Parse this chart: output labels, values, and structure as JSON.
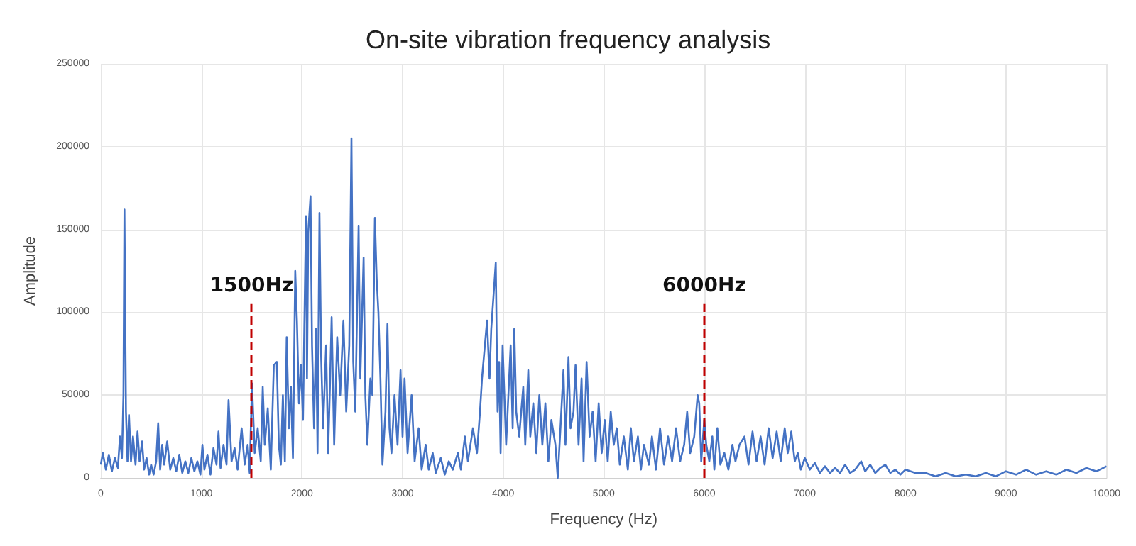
{
  "chart_data": {
    "type": "line",
    "title": "On-site vibration frequency analysis",
    "xlabel": "Frequency (Hz)",
    "ylabel": "Amplitude",
    "xlim": [
      0,
      10000
    ],
    "xticks": [
      0,
      1000,
      2000,
      3000,
      4000,
      5000,
      6000,
      7000,
      8000,
      9000,
      10000
    ],
    "ylim": [
      0,
      250000
    ],
    "yticks": [
      0,
      50000,
      100000,
      150000,
      200000,
      250000
    ],
    "grid": true,
    "marker": "none",
    "line_style": "solid",
    "ref_lines": [
      {
        "axis": "x",
        "value": 1500,
        "label": "1500Hz",
        "color": "#c00000",
        "line_style": "dashed"
      },
      {
        "axis": "x",
        "value": 6000,
        "label": "6000Hz",
        "color": "#c00000",
        "line_style": "dashed"
      }
    ],
    "series": [
      {
        "color": "#4472c4",
        "x": [
          0,
          20,
          50,
          80,
          110,
          140,
          170,
          190,
          210,
          225,
          235,
          250,
          265,
          280,
          300,
          320,
          345,
          365,
          385,
          410,
          430,
          455,
          480,
          500,
          525,
          550,
          570,
          590,
          610,
          630,
          660,
          690,
          720,
          750,
          780,
          810,
          840,
          870,
          900,
          930,
          960,
          990,
          1010,
          1030,
          1060,
          1090,
          1120,
          1150,
          1170,
          1190,
          1220,
          1250,
          1270,
          1300,
          1330,
          1360,
          1400,
          1430,
          1460,
          1480,
          1503,
          1530,
          1560,
          1590,
          1610,
          1630,
          1660,
          1690,
          1720,
          1750,
          1770,
          1790,
          1810,
          1830,
          1848,
          1870,
          1890,
          1910,
          1933,
          1950,
          1970,
          1990,
          2010,
          2040,
          2050,
          2062,
          2085,
          2100,
          2120,
          2140,
          2155,
          2174,
          2190,
          2210,
          2240,
          2260,
          2280,
          2295,
          2320,
          2350,
          2380,
          2412,
          2440,
          2470,
          2492,
          2510,
          2530,
          2563,
          2580,
          2613,
          2630,
          2650,
          2680,
          2700,
          2725,
          2743,
          2760,
          2780,
          2800,
          2830,
          2850,
          2870,
          2890,
          2920,
          2950,
          2980,
          3000,
          3020,
          3050,
          3090,
          3120,
          3160,
          3190,
          3230,
          3260,
          3300,
          3330,
          3380,
          3420,
          3460,
          3500,
          3550,
          3580,
          3620,
          3650,
          3700,
          3740,
          3770,
          3790,
          3840,
          3865,
          3882,
          3927,
          3945,
          3960,
          3975,
          3995,
          4030,
          4075,
          4095,
          4111,
          4130,
          4160,
          4200,
          4220,
          4250,
          4270,
          4300,
          4330,
          4360,
          4390,
          4420,
          4450,
          4480,
          4520,
          4543,
          4570,
          4600,
          4620,
          4650,
          4670,
          4700,
          4720,
          4750,
          4780,
          4800,
          4830,
          4860,
          4890,
          4920,
          4950,
          4980,
          5010,
          5040,
          5070,
          5100,
          5130,
          5160,
          5200,
          5240,
          5270,
          5300,
          5340,
          5370,
          5400,
          5450,
          5480,
          5520,
          5560,
          5600,
          5640,
          5680,
          5720,
          5760,
          5800,
          5830,
          5860,
          5900,
          5934,
          5950,
          5970,
          6000,
          6020,
          6050,
          6080,
          6100,
          6130,
          6160,
          6200,
          6240,
          6280,
          6310,
          6350,
          6400,
          6440,
          6480,
          6520,
          6560,
          6600,
          6640,
          6680,
          6720,
          6760,
          6800,
          6830,
          6865,
          6900,
          6930,
          6960,
          7000,
          7050,
          7100,
          7150,
          7200,
          7250,
          7300,
          7350,
          7400,
          7450,
          7500,
          7560,
          7600,
          7650,
          7700,
          7750,
          7800,
          7850,
          7900,
          7950,
          8000,
          8100,
          8200,
          8300,
          8400,
          8500,
          8600,
          8700,
          8800,
          8900,
          9000,
          9100,
          9200,
          9300,
          9400,
          9500,
          9600,
          9700,
          9800,
          9900,
          10000
        ],
        "values": [
          8000,
          15000,
          5000,
          14000,
          4000,
          12000,
          6000,
          25000,
          12000,
          50000,
          162000,
          40000,
          10000,
          38000,
          10000,
          25000,
          8000,
          28000,
          10000,
          22000,
          5000,
          12000,
          2000,
          8000,
          2000,
          10000,
          33000,
          5000,
          20000,
          8000,
          22000,
          5000,
          12000,
          4000,
          14000,
          3000,
          10000,
          3000,
          12000,
          4000,
          10000,
          2000,
          20000,
          5000,
          14000,
          2000,
          18000,
          8000,
          28000,
          6000,
          20000,
          8000,
          47000,
          10000,
          18000,
          5000,
          30000,
          8000,
          20000,
          3000,
          57000,
          15000,
          30000,
          10000,
          55000,
          20000,
          42000,
          5000,
          68000,
          70000,
          20000,
          8000,
          50000,
          10000,
          85000,
          30000,
          55000,
          12000,
          125000,
          95000,
          45000,
          68000,
          35000,
          158000,
          60000,
          148000,
          170000,
          80000,
          30000,
          90000,
          15000,
          160000,
          75000,
          30000,
          80000,
          15000,
          60000,
          97000,
          20000,
          85000,
          50000,
          95000,
          40000,
          80000,
          205000,
          70000,
          40000,
          152000,
          60000,
          133000,
          50000,
          20000,
          60000,
          50000,
          157000,
          120000,
          100000,
          60000,
          8000,
          40000,
          93000,
          30000,
          15000,
          50000,
          20000,
          65000,
          25000,
          60000,
          15000,
          50000,
          10000,
          30000,
          5000,
          20000,
          5000,
          15000,
          3000,
          12000,
          2000,
          10000,
          5000,
          15000,
          5000,
          25000,
          10000,
          30000,
          15000,
          40000,
          60000,
          95000,
          60000,
          90000,
          130000,
          40000,
          70000,
          15000,
          80000,
          20000,
          80000,
          30000,
          90000,
          40000,
          25000,
          55000,
          20000,
          65000,
          25000,
          45000,
          15000,
          50000,
          20000,
          45000,
          10000,
          35000,
          20000,
          0,
          30000,
          65000,
          20000,
          73000,
          30000,
          40000,
          68000,
          20000,
          60000,
          10000,
          70000,
          25000,
          40000,
          10000,
          45000,
          15000,
          35000,
          10000,
          40000,
          20000,
          30000,
          8000,
          25000,
          5000,
          30000,
          10000,
          25000,
          5000,
          20000,
          8000,
          25000,
          5000,
          30000,
          8000,
          25000,
          10000,
          30000,
          10000,
          20000,
          40000,
          15000,
          25000,
          50000,
          45000,
          10000,
          35000,
          20000,
          10000,
          25000,
          5000,
          30000,
          8000,
          15000,
          5000,
          20000,
          10000,
          20000,
          25000,
          8000,
          28000,
          10000,
          25000,
          8000,
          30000,
          12000,
          28000,
          10000,
          30000,
          15000,
          28000,
          10000,
          15000,
          5000,
          12000,
          5000,
          9000,
          3000,
          7000,
          3000,
          6000,
          3000,
          8000,
          3000,
          5000,
          10000,
          4000,
          8000,
          3000,
          6000,
          8000,
          3000,
          5000,
          2000,
          5000,
          3000,
          3000,
          1000,
          3000,
          1000,
          2000,
          1000,
          3000,
          1000,
          4000,
          2000,
          5000,
          2000,
          4000,
          2000,
          5000,
          3000,
          6000,
          4000,
          7000
        ]
      }
    ]
  }
}
